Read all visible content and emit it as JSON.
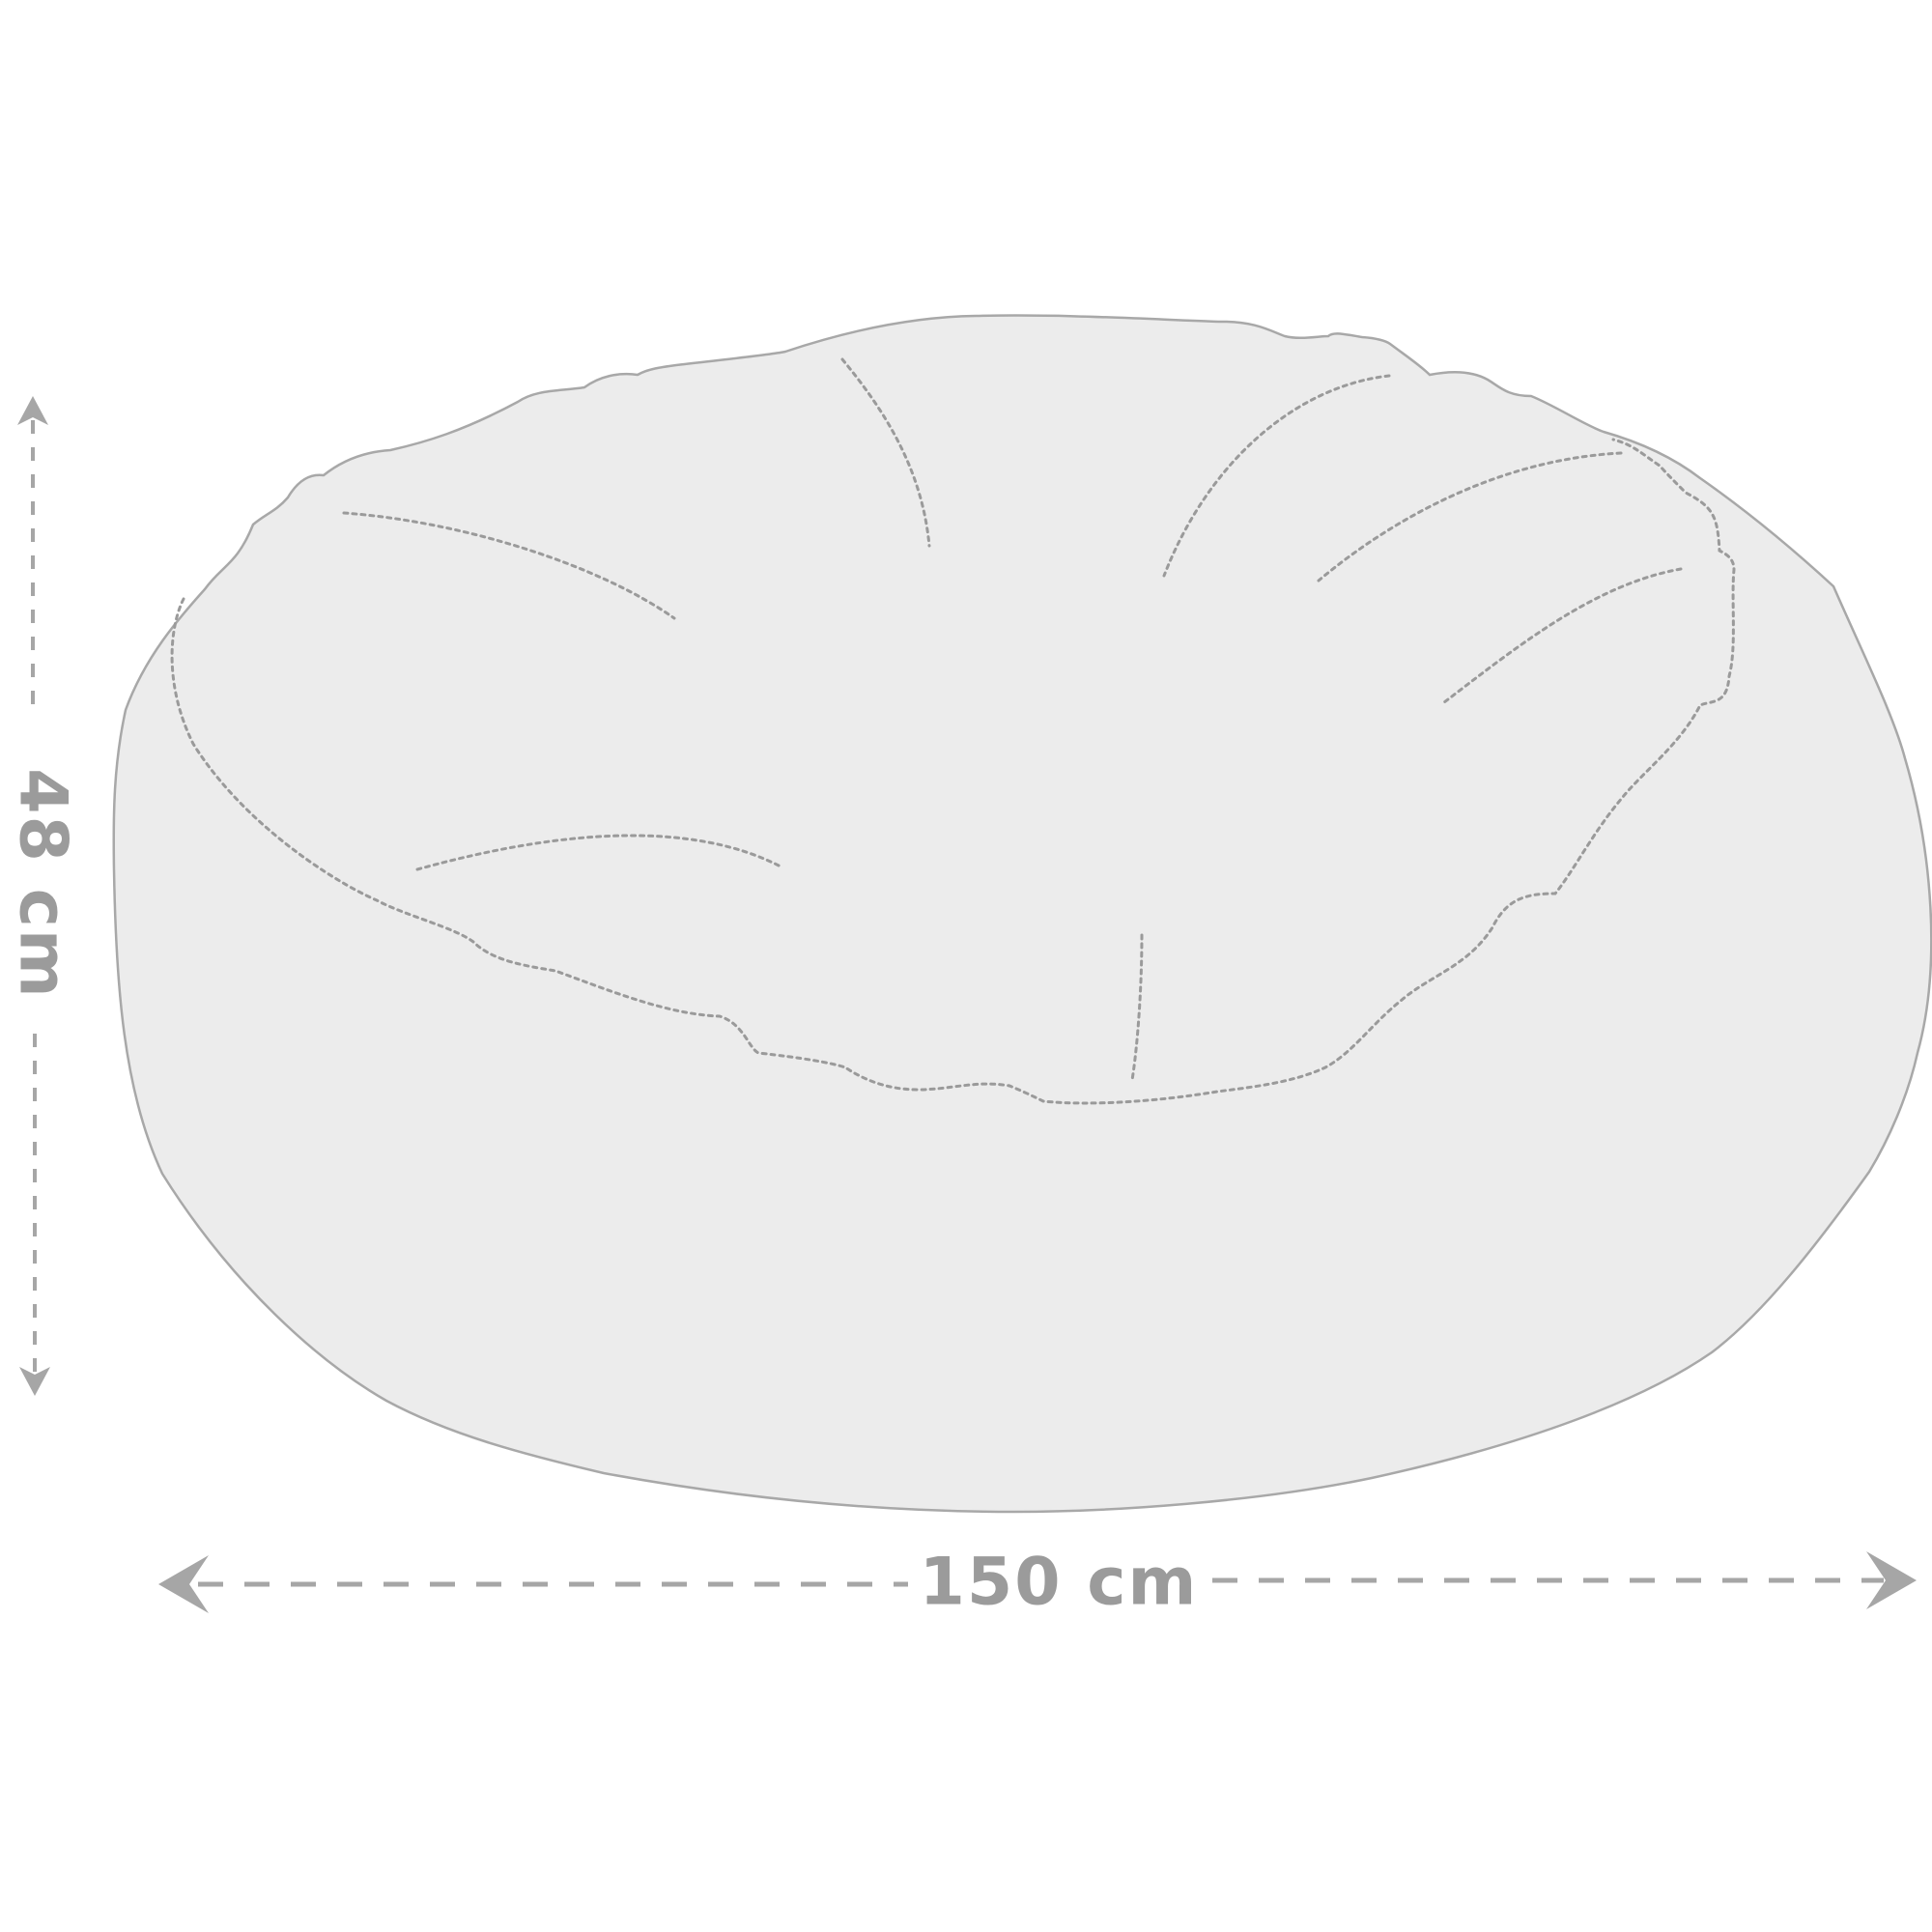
{
  "dimensions": {
    "height_label": "48 cm",
    "width_label": "150 cm"
  },
  "colors": {
    "background": "#ffffff",
    "product_fill": "#ececec",
    "product_outline": "#a8a8a8",
    "stitching": "#9a9a9a",
    "dimension_lines": "#a6a6a6",
    "label_text": "#9b9b9b"
  }
}
